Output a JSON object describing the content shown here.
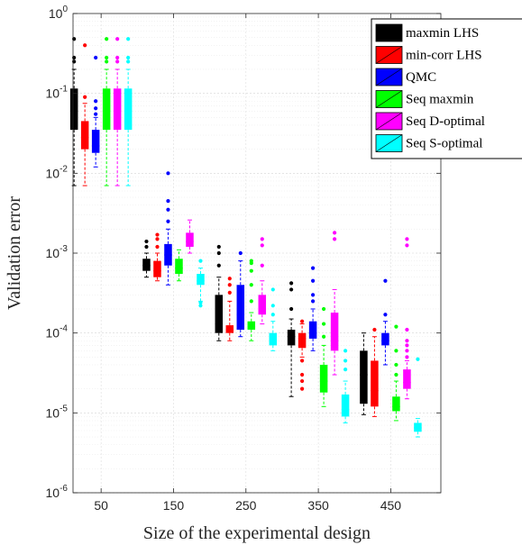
{
  "chart_data": {
    "type": "boxplot",
    "title": "",
    "xlabel": "Size of the experimental design",
    "ylabel": "Validation error",
    "yscale": "log",
    "ylim": [
      1e-06,
      1
    ],
    "y_ticks": [
      {
        "value": 1e-06,
        "base": "10",
        "exp": "-6"
      },
      {
        "value": 1e-05,
        "base": "10",
        "exp": "-5"
      },
      {
        "value": 0.0001,
        "base": "10",
        "exp": "-4"
      },
      {
        "value": 0.001,
        "base": "10",
        "exp": "-3"
      },
      {
        "value": 0.01,
        "base": "10",
        "exp": "-2"
      },
      {
        "value": 0.1,
        "base": "10",
        "exp": "-1"
      },
      {
        "value": 1,
        "base": "10",
        "exp": "0"
      }
    ],
    "categories": [
      "50",
      "150",
      "250",
      "350",
      "450"
    ],
    "grid": true,
    "legend_position": "top-right",
    "series": [
      {
        "name": "maxmin LHS",
        "color": "#000000",
        "boxes": [
          {
            "min": 0.007,
            "q1": 0.035,
            "median": 0.06,
            "q3": 0.115,
            "max": 0.2,
            "outliers": [
              0.25,
              0.28,
              0.48
            ]
          },
          {
            "min": 0.0005,
            "q1": 0.0006,
            "median": 0.0007,
            "q3": 0.00085,
            "max": 0.001,
            "outliers": [
              0.0012,
              0.0014
            ]
          },
          {
            "min": 8e-05,
            "q1": 0.0001,
            "median": 0.00013,
            "q3": 0.0003,
            "max": 0.0005,
            "outliers": [
              0.0007,
              0.001,
              0.0012
            ]
          },
          {
            "min": 1.6e-05,
            "q1": 7e-05,
            "median": 9e-05,
            "q3": 0.00011,
            "max": 0.00015,
            "outliers": [
              0.0002,
              0.00035,
              0.00042
            ]
          },
          {
            "min": 9.5e-06,
            "q1": 1.3e-05,
            "median": 3e-05,
            "q3": 6e-05,
            "max": 0.0001,
            "outliers": []
          }
        ]
      },
      {
        "name": "min-corr LHS",
        "color": "#ff0000",
        "boxes": [
          {
            "min": 0.007,
            "q1": 0.02,
            "median": 0.028,
            "q3": 0.045,
            "max": 0.075,
            "outliers": [
              0.09,
              0.4
            ]
          },
          {
            "min": 0.00045,
            "q1": 0.0005,
            "median": 0.0006,
            "q3": 0.0008,
            "max": 0.001,
            "outliers": [
              0.0012,
              0.0015,
              0.0017
            ]
          },
          {
            "min": 8e-05,
            "q1": 0.0001,
            "median": 0.00011,
            "q3": 0.000125,
            "max": 0.00025,
            "outliers": [
              0.00032,
              0.0004,
              0.00048
            ]
          },
          {
            "min": 5e-05,
            "q1": 6.5e-05,
            "median": 8.5e-05,
            "q3": 0.0001,
            "max": 0.00013,
            "outliers": [
              2e-05,
              2.5e-05,
              3e-05,
              4.5e-05,
              0.00014
            ]
          },
          {
            "min": 9e-06,
            "q1": 1.2e-05,
            "median": 1.9e-05,
            "q3": 4.5e-05,
            "max": 9e-05,
            "outliers": [
              0.00011
            ]
          }
        ]
      },
      {
        "name": "QMC",
        "color": "#0000ff",
        "boxes": [
          {
            "min": 0.012,
            "q1": 0.018,
            "median": 0.022,
            "q3": 0.035,
            "max": 0.05,
            "outliers": [
              0.055,
              0.065,
              0.08,
              0.28
            ]
          },
          {
            "min": 0.0004,
            "q1": 0.0007,
            "median": 0.00095,
            "q3": 0.0013,
            "max": 0.002,
            "outliers": [
              0.0025,
              0.0035,
              0.0045,
              0.01
            ]
          },
          {
            "min": 9e-05,
            "q1": 0.00011,
            "median": 0.00017,
            "q3": 0.0004,
            "max": 0.0008,
            "outliers": [
              0.001
            ]
          },
          {
            "min": 6e-05,
            "q1": 8.5e-05,
            "median": 0.0001,
            "q3": 0.00014,
            "max": 0.0002,
            "outliers": [
              0.00025,
              0.0003,
              0.00045,
              0.00065
            ]
          },
          {
            "min": 4e-05,
            "q1": 7e-05,
            "median": 8e-05,
            "q3": 0.0001,
            "max": 0.00014,
            "outliers": [
              0.00017,
              0.00045
            ]
          }
        ]
      },
      {
        "name": "Seq maxmin",
        "color": "#00ff00",
        "boxes": [
          {
            "min": 0.007,
            "q1": 0.035,
            "median": 0.06,
            "q3": 0.115,
            "max": 0.2,
            "outliers": [
              0.25,
              0.28,
              0.48
            ]
          },
          {
            "min": 0.00045,
            "q1": 0.00055,
            "median": 0.00065,
            "q3": 0.00085,
            "max": 0.0011,
            "outliers": []
          },
          {
            "min": 8e-05,
            "q1": 0.00011,
            "median": 0.00012,
            "q3": 0.00014,
            "max": 0.00018,
            "outliers": [
              0.00025,
              0.0004,
              0.0006,
              0.00075,
              0.0008
            ]
          },
          {
            "min": 1.2e-05,
            "q1": 1.8e-05,
            "median": 2.5e-05,
            "q3": 4e-05,
            "max": 7e-05,
            "outliers": [
              9e-05,
              0.00013,
              0.0002
            ]
          },
          {
            "min": 8e-06,
            "q1": 1.05e-05,
            "median": 1.2e-05,
            "q3": 1.6e-05,
            "max": 2.5e-05,
            "outliers": [
              3e-05,
              4e-05,
              6e-05,
              0.00012
            ]
          }
        ]
      },
      {
        "name": "Seq D-optimal",
        "color": "#ff00ff",
        "boxes": [
          {
            "min": 0.007,
            "q1": 0.035,
            "median": 0.06,
            "q3": 0.115,
            "max": 0.2,
            "outliers": [
              0.25,
              0.28,
              0.48
            ]
          },
          {
            "min": 0.001,
            "q1": 0.0012,
            "median": 0.0014,
            "q3": 0.0018,
            "max": 0.0026,
            "outliers": []
          },
          {
            "min": 0.00013,
            "q1": 0.00017,
            "median": 0.0002,
            "q3": 0.0003,
            "max": 0.00045,
            "outliers": [
              0.0007,
              0.00125,
              0.0015
            ]
          },
          {
            "min": 3e-05,
            "q1": 6e-05,
            "median": 8e-05,
            "q3": 0.00018,
            "max": 0.00035,
            "outliers": [
              0.0015,
              0.0018
            ]
          },
          {
            "min": 1.5e-05,
            "q1": 2e-05,
            "median": 2.4e-05,
            "q3": 3.5e-05,
            "max": 4.5e-05,
            "outliers": [
              5e-05,
              6e-05,
              7e-05,
              8e-05,
              0.00011,
              0.00125,
              0.0015
            ]
          }
        ]
      },
      {
        "name": "Seq S-optimal",
        "color": "#00ffff",
        "boxes": [
          {
            "min": 0.007,
            "q1": 0.035,
            "median": 0.06,
            "q3": 0.115,
            "max": 0.2,
            "outliers": [
              0.25,
              0.28,
              0.48
            ]
          },
          {
            "min": 0.00025,
            "q1": 0.0004,
            "median": 0.00045,
            "q3": 0.00055,
            "max": 0.00065,
            "outliers": [
              0.00022,
              0.00024,
              0.0008
            ]
          },
          {
            "min": 6e-05,
            "q1": 7e-05,
            "median": 8e-05,
            "q3": 0.0001,
            "max": 0.00014,
            "outliers": [
              0.00017,
              0.00022,
              0.00035
            ]
          },
          {
            "min": 7.5e-06,
            "q1": 9e-06,
            "median": 1.1e-05,
            "q3": 1.7e-05,
            "max": 2.5e-05,
            "outliers": [
              3.5e-05,
              4.5e-05,
              6e-05
            ]
          },
          {
            "min": 5e-06,
            "q1": 5.8e-06,
            "median": 6.5e-06,
            "q3": 7.5e-06,
            "max": 8.5e-06,
            "outliers": [
              4.7e-05
            ]
          }
        ]
      }
    ]
  }
}
